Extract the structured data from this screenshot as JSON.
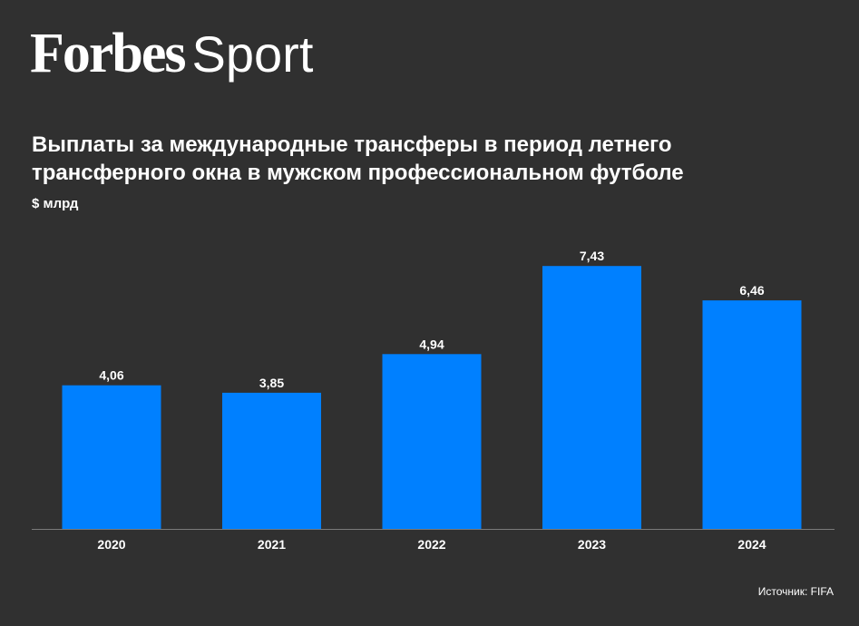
{
  "brand": {
    "name": "Forbes",
    "section": "Sport"
  },
  "header": {
    "title": "Выплаты за международные трансферы в период летнего трансферного окна в мужском профессиональном футболе",
    "unit": "$ млрд"
  },
  "footer": {
    "source": "Источник: FIFA"
  },
  "colors": {
    "background": "#303030",
    "bar": "#0080ff",
    "text": "#ffffff",
    "axis": "#7a7a7a"
  },
  "chart_data": {
    "type": "bar",
    "title": "Выплаты за международные трансферы в период летнего трансферного окна в мужском профессиональном футболе",
    "ylabel": "$ млрд",
    "xlabel": "",
    "categories": [
      "2020",
      "2021",
      "2022",
      "2023",
      "2024"
    ],
    "values": [
      4.06,
      3.85,
      4.94,
      7.43,
      6.46
    ],
    "value_labels": [
      "4,06",
      "3,85",
      "4,94",
      "7,43",
      "6,46"
    ],
    "ylim": [
      0,
      8
    ],
    "grid": false,
    "legend": "none"
  }
}
